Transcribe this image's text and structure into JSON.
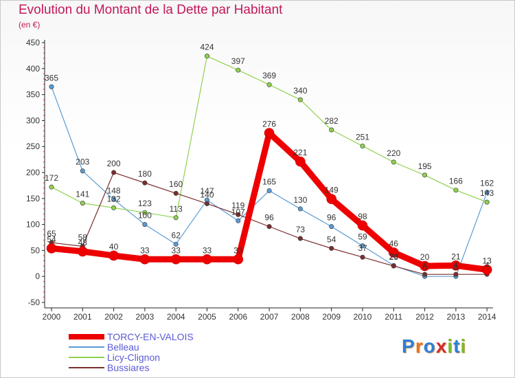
{
  "title": "Evolution du Montant de la Dette par Habitant",
  "subtitle": "(en €)",
  "logo": {
    "letters": [
      "P",
      "r",
      "o",
      "x",
      "i",
      "t",
      "i"
    ],
    "colors": [
      "#2f7fd6",
      "#e8741e",
      "#2f7fd6",
      "#d22d2d",
      "#7cb82f",
      "#2f7fd6",
      "#7cb82f"
    ]
  },
  "chart_data": {
    "type": "line",
    "categories": [
      "2000",
      "2001",
      "2002",
      "2003",
      "2004",
      "2005",
      "2006",
      "2007",
      "2008",
      "2009",
      "2010",
      "2011",
      "2012",
      "2013",
      "2014"
    ],
    "ylim": [
      -50,
      450
    ],
    "yticks": [
      -50,
      0,
      50,
      100,
      150,
      200,
      250,
      300,
      350,
      400,
      450
    ],
    "grid": false,
    "legend_position": "bottom-left",
    "series": [
      {
        "name": "TORCY-EN-VALOIS",
        "color": "#ee0000",
        "width": 9,
        "values": [
          54,
          48,
          40,
          33,
          33,
          33,
          33,
          276,
          221,
          149,
          98,
          46,
          20,
          21,
          13
        ],
        "labels": [
          "54",
          "48",
          "40",
          "33",
          "33",
          "33",
          "33",
          "276",
          "221",
          "149",
          "98",
          "46",
          "20",
          "21",
          "13"
        ]
      },
      {
        "name": "Belleau",
        "color": "#5b9bd5",
        "width": 1.2,
        "values": [
          365,
          203,
          148,
          100,
          62,
          147,
          107,
          165,
          130,
          96,
          59,
          21,
          0,
          0,
          162
        ],
        "labels": [
          "365",
          "203",
          "148",
          "100",
          "62",
          "147",
          "107",
          "165",
          "130",
          "96",
          "59",
          "21",
          "0",
          "0",
          "162"
        ]
      },
      {
        "name": "Licy-Clignon",
        "color": "#8fd14f",
        "width": 1.2,
        "values": [
          172,
          141,
          132,
          123,
          113,
          424,
          397,
          369,
          340,
          282,
          251,
          220,
          195,
          166,
          143
        ],
        "labels": [
          "172",
          "141",
          "132",
          "123",
          "113",
          "424",
          "397",
          "369",
          "340",
          "282",
          "251",
          "220",
          "195",
          "166",
          "143"
        ]
      },
      {
        "name": "Bussiares",
        "color": "#7a2e2e",
        "width": 1.2,
        "values": [
          65,
          58,
          200,
          180,
          160,
          140,
          119,
          96,
          73,
          54,
          37,
          20,
          4,
          4,
          4
        ],
        "labels": [
          "65",
          "58",
          "200",
          "180",
          "160",
          "140",
          "119",
          "96",
          "73",
          "54",
          "37",
          "20",
          "4",
          "4",
          "4"
        ]
      }
    ]
  }
}
